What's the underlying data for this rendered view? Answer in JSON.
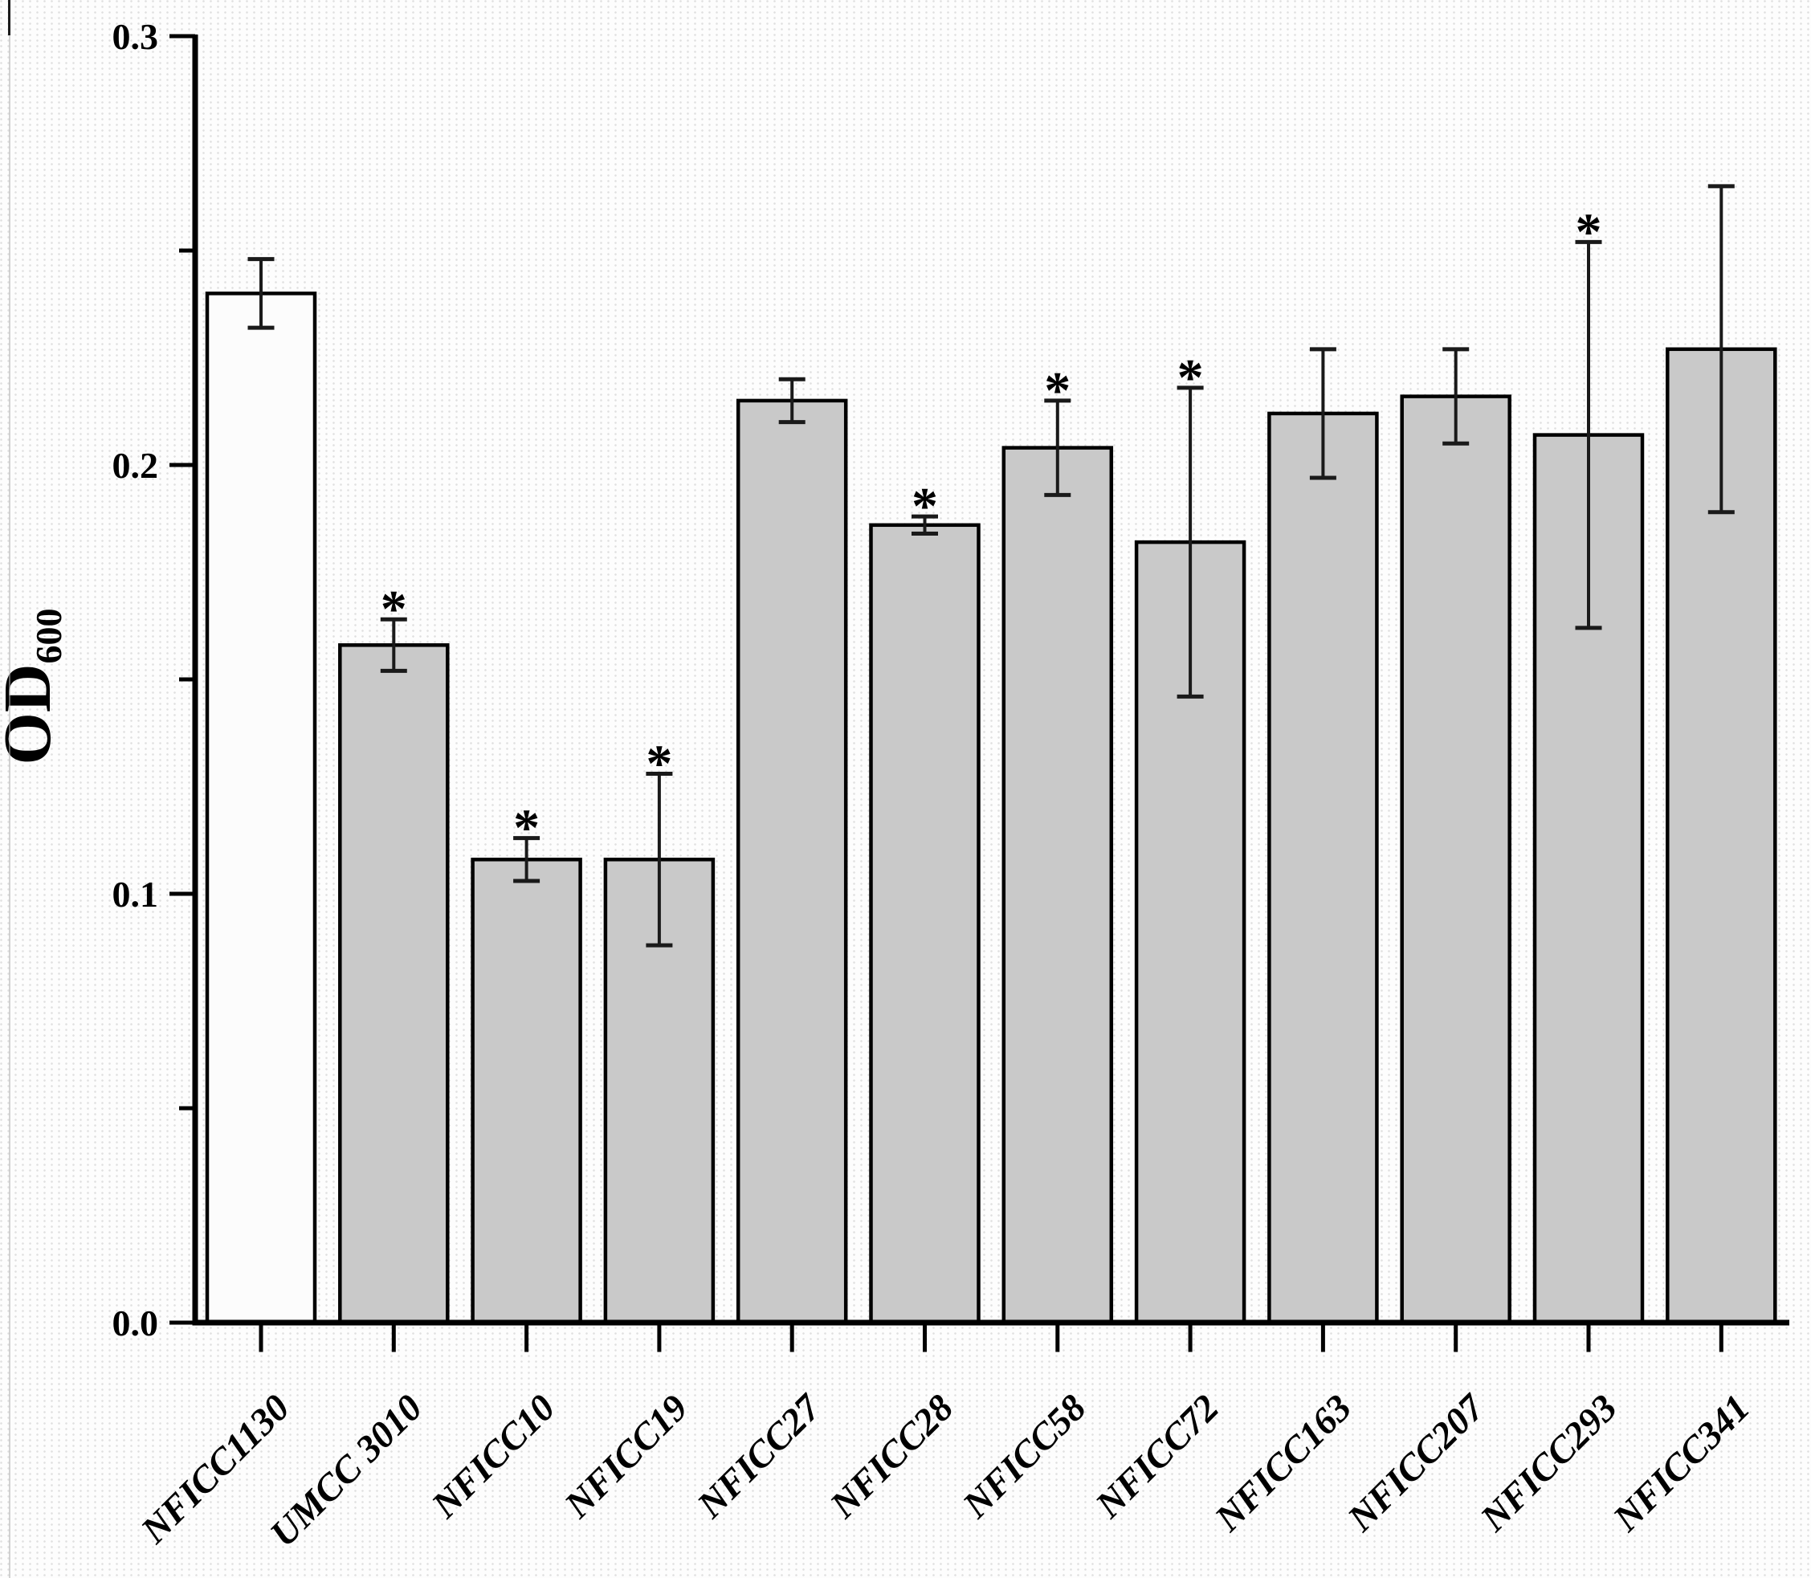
{
  "figure": {
    "description": "Bar chart of OD600 optical density for twelve yeast strains with standard-deviation error bars; asterisks mark statistically significant differences from the control strain NFICC1130.",
    "background_dot_color": "#e0e0e0",
    "axis_color": "#000000",
    "bar_stroke_color": "#000000",
    "control_bar_fill": "#fcfcfc",
    "default_bar_fill": "#c9c9c9",
    "error_bar_color": "#1a1a1a"
  },
  "chart_data": {
    "type": "bar",
    "title": "",
    "xlabel": "",
    "ylabel": {
      "main": "OD",
      "subscript": "600"
    },
    "ylim": [
      0.0,
      0.3
    ],
    "grid": false,
    "legend": false,
    "significance_marker": "*",
    "y_major_ticks": [
      {
        "value": 0.0,
        "label": "0.0"
      },
      {
        "value": 0.1,
        "label": "0.1"
      },
      {
        "value": 0.2,
        "label": "0.2"
      },
      {
        "value": 0.3,
        "label": "0.3"
      }
    ],
    "y_minor_ticks": [
      0.05,
      0.15,
      0.25
    ],
    "categories": [
      "NFICC1130",
      "UMCC 3010",
      "NFICC10",
      "NFICC19",
      "NFICC27",
      "NFICC28",
      "NFICC58",
      "NFICC72",
      "NFICC163",
      "NFICC207",
      "NFICC293",
      "NFICC341"
    ],
    "series": [
      {
        "name": "OD600",
        "values": [
          0.24,
          0.158,
          0.108,
          0.108,
          0.215,
          0.186,
          0.204,
          0.182,
          0.212,
          0.216,
          0.207,
          0.227
        ],
        "errors": [
          0.008,
          0.006,
          0.005,
          0.02,
          0.005,
          0.002,
          0.011,
          0.036,
          0.015,
          0.011,
          0.045,
          0.038
        ],
        "significant": [
          false,
          true,
          true,
          true,
          false,
          true,
          true,
          true,
          false,
          false,
          true,
          false
        ],
        "control_index": 0
      }
    ]
  }
}
